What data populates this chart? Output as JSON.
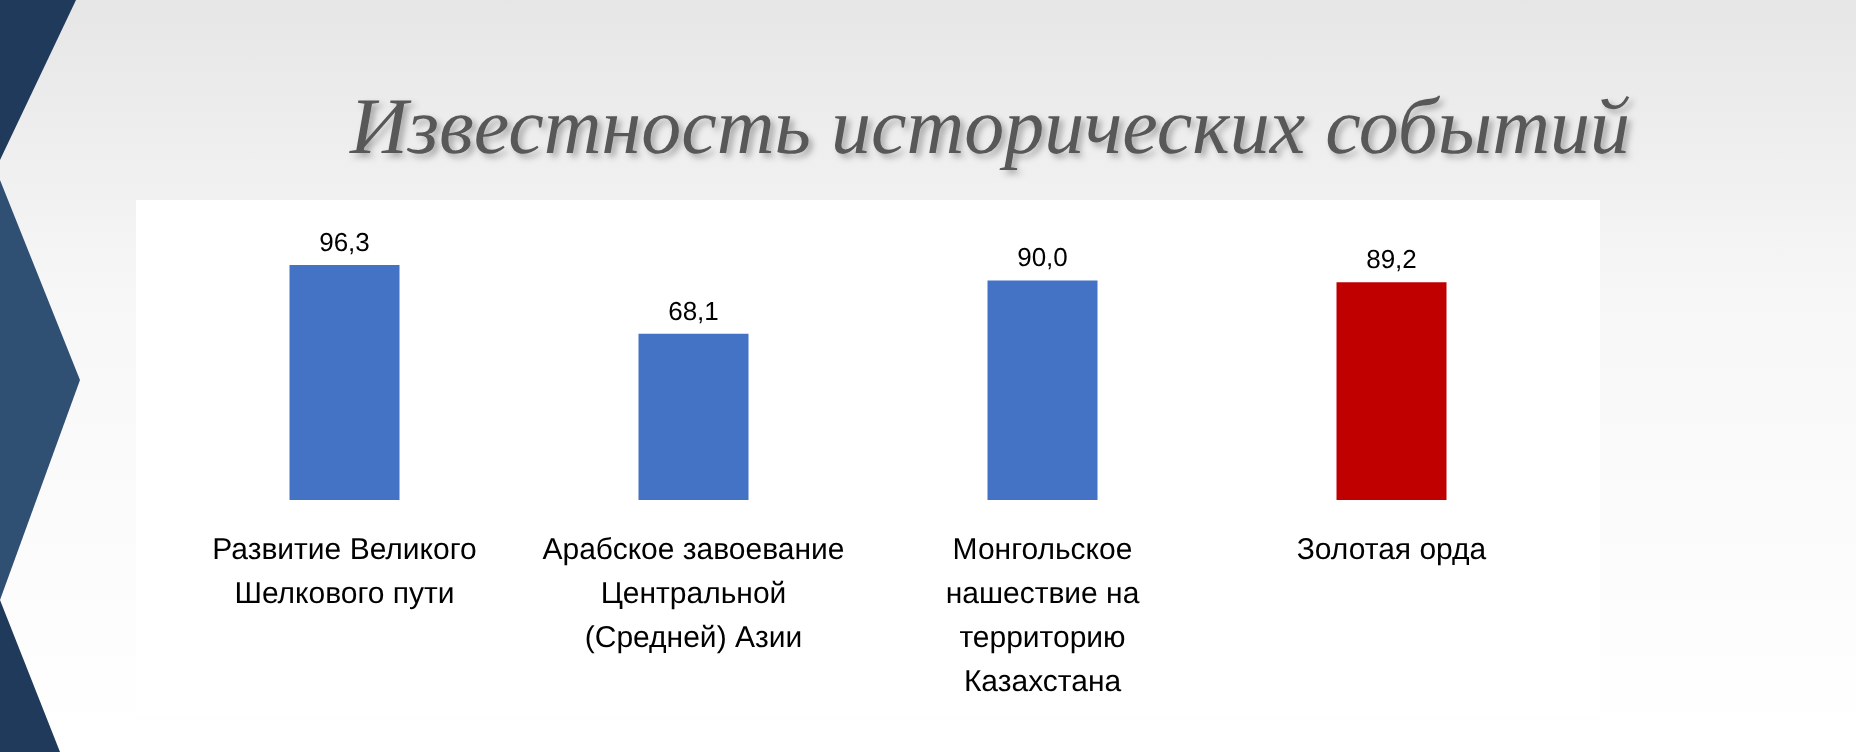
{
  "chart_data": {
    "type": "bar",
    "title": "Известность исторических событий",
    "categories": [
      "Развитие Великого Шелкового пути",
      "Арабское завоевание Центральной (Средней) Азии",
      "Монгольское нашествие на территорию Казахстана",
      "Золотая орда"
    ],
    "values": [
      96.3,
      68.1,
      90.0,
      89.2
    ],
    "value_labels": [
      "96,3",
      "68,1",
      "90,0",
      "89,2"
    ],
    "colors": [
      "#4472c4",
      "#4472c4",
      "#4472c4",
      "#c00000"
    ],
    "grid": false
  }
}
